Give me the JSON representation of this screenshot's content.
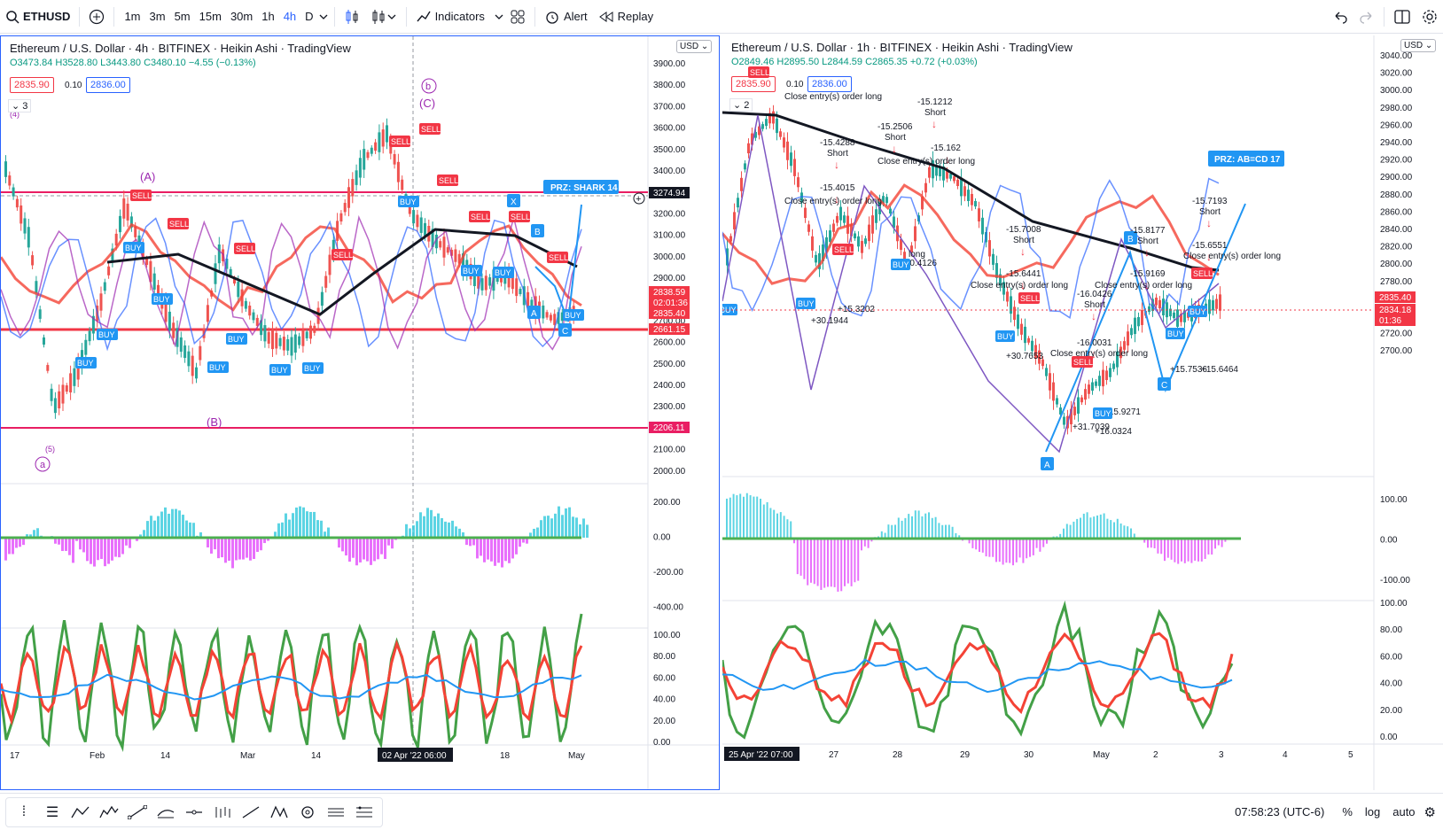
{
  "topbar": {
    "symbol": "ETHUSD",
    "timeframes": [
      "1m",
      "3m",
      "5m",
      "15m",
      "30m",
      "1h",
      "4h",
      "D"
    ],
    "active_timeframe": "4h",
    "indicators_label": "Indicators",
    "alert_label": "Alert",
    "replay_label": "Replay"
  },
  "left_chart": {
    "title": "Ethereum / U.S. Dollar · 4h · BITFINEX · Heikin Ashi · TradingView",
    "ohlc": "O3473.84 H3528.80 L3443.80 C3480.10 −4.55 (−0.13%)",
    "sell_price": "2835.90",
    "qty": "0.10",
    "buy_price": "2836.00",
    "indicator_count": "3",
    "currency": "USD",
    "price_ticks": [
      "3900.00",
      "3800.00",
      "3700.00",
      "3600.00",
      "3500.00",
      "3400.00",
      "3300.00",
      "3200.00",
      "3100.00",
      "3000.00",
      "2900.00",
      "2800.00",
      "2700.00",
      "2600.00",
      "2500.00",
      "2400.00",
      "2300.00",
      "2200.00",
      "2100.00",
      "2000.00"
    ],
    "price_labels": {
      "crosshair": "3274.94",
      "last": "2838.59",
      "countdown": "02:01:36",
      "bid": "2835.40",
      "level1": "2661.15",
      "level2": "2206.11"
    },
    "macd_ticks": [
      "200.00",
      "0.00",
      "-200.00",
      "-400.00"
    ],
    "stoch_ticks": [
      "100.00",
      "80.00",
      "60.00",
      "40.00",
      "20.00",
      "0.00"
    ],
    "time_ticks": [
      "17",
      "Feb",
      "14",
      "Mar",
      "14",
      "18",
      "May"
    ],
    "time_cursor": "02 Apr '22   06:00",
    "przLabel": "PRZ: SHARK 14",
    "wave_labels": {
      "a": "a",
      "five": "(5)",
      "A": "(A)",
      "B": "(B)",
      "b": "b",
      "C": "(C)",
      "four": "(4)"
    },
    "pattern_points": [
      "X",
      "A",
      "B",
      "C"
    ],
    "signals": [
      "BUY",
      "SELL"
    ]
  },
  "right_chart": {
    "title": "Ethereum / U.S. Dollar · 1h · BITFINEX · Heikin Ashi · TradingView",
    "ohlc": "O2849.46 H2895.50 L2844.59 C2865.35 +0.72 (+0.03%)",
    "sell_price": "2835.90",
    "qty": "0.10",
    "buy_price": "2836.00",
    "indicator_count": "2",
    "currency": "USD",
    "price_ticks": [
      "3040.00",
      "3020.00",
      "3000.00",
      "2980.00",
      "2960.00",
      "2940.00",
      "2920.00",
      "2900.00",
      "2880.00",
      "2860.00",
      "2840.00",
      "2820.00",
      "2800.00",
      "2780.00",
      "2760.00",
      "2740.00",
      "2720.00",
      "2700.00"
    ],
    "price_labels": {
      "last": "2835.40",
      "bid": "2834.18",
      "countdown": "01:36"
    },
    "macd_ticks": [
      "100.00",
      "0.00",
      "-100.00"
    ],
    "stoch_ticks": [
      "100.00",
      "80.00",
      "60.00",
      "40.00",
      "20.00",
      "0.00"
    ],
    "time_ticks": [
      "27",
      "28",
      "29",
      "30",
      "May",
      "2",
      "3",
      "4",
      "5"
    ],
    "time_cursor": "25 Apr '22   07:00",
    "przLabel": "PRZ: AB=CD 17",
    "annotations": [
      {
        "t": "-15.4288",
        "s": "Short"
      },
      {
        "t": "-15.2506",
        "s": "Short"
      },
      {
        "t": "-15.1212",
        "s": "Short"
      },
      {
        "t": "-15.162",
        "s": ""
      },
      {
        "t": "-15.4015",
        "s": ""
      },
      {
        "t": "-15.7008",
        "s": "Short"
      },
      {
        "t": "-15.6441",
        "s": ""
      },
      {
        "t": "-16.0426",
        "s": "Short"
      },
      {
        "t": "-16.0031",
        "s": ""
      },
      {
        "t": "-15.8177",
        "s": "Short"
      },
      {
        "t": "-15.9169",
        "s": ""
      },
      {
        "t": "-15.7193",
        "s": "Short"
      },
      {
        "t": "-15.6551",
        "s": ""
      }
    ],
    "close_text": "Close entry(s) order long",
    "long_labels": [
      "long",
      "+30.4126",
      "+30.1944",
      "+15.3202",
      "+30.7653",
      "+31.7039",
      "+15.9271",
      "+16.0324",
      "+15.7536",
      "+15.6464"
    ],
    "pattern_points": [
      "A",
      "B",
      "C"
    ],
    "signals": [
      "BUY",
      "SELL"
    ]
  },
  "bottombar": {
    "time": "07:58:23 (UTC-6)",
    "percent": "%",
    "log": "log",
    "auto": "auto"
  }
}
